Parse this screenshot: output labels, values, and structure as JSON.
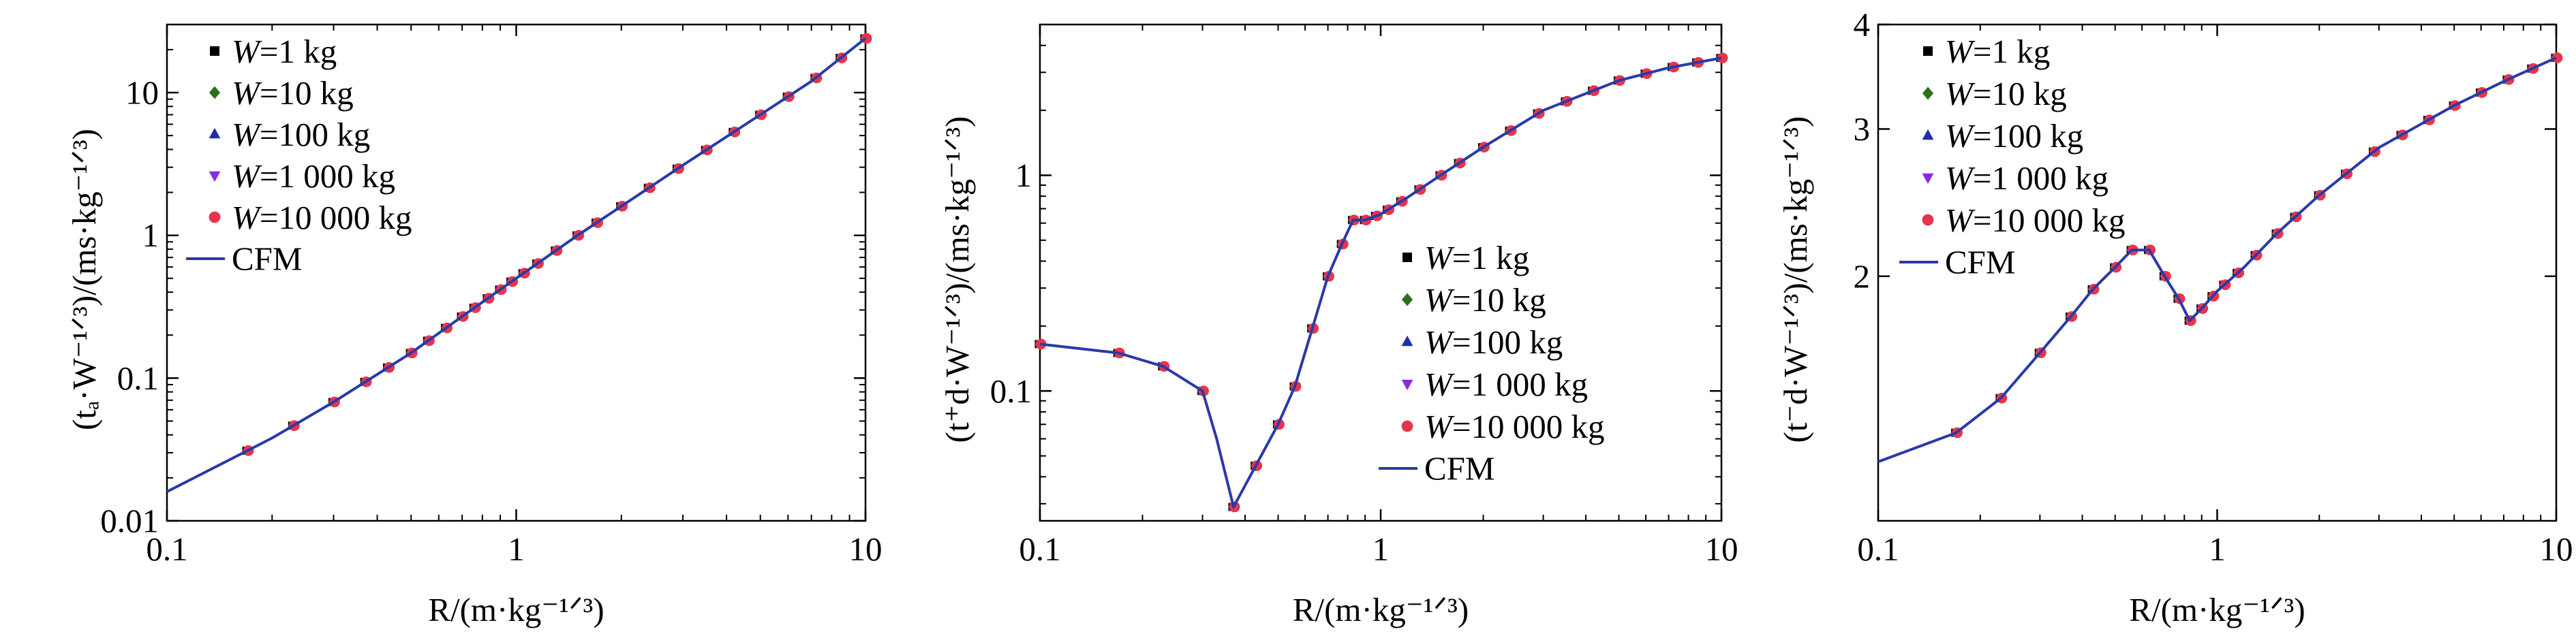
{
  "colors": {
    "W1": "#000000",
    "W10": "#2d6e1c",
    "W100": "#1d2fb0",
    "W1000": "#8a2be2",
    "W10000": "#e8344a",
    "CFM": "#2a3aa8"
  },
  "chart_data": [
    {
      "type": "line",
      "xlabel": "R/(m·kg⁻¹ᐟ³)",
      "ylabel": "(tₐ·W⁻¹ᐟ³)/(ms·kg⁻¹ᐟ³)",
      "xscale": "log",
      "yscale": "log",
      "xlim": [
        0.1,
        10
      ],
      "ylim": [
        0.01,
        30
      ],
      "xticks": [
        {
          "v": 0.1,
          "label": "0.1"
        },
        {
          "v": 1,
          "label": "1"
        },
        {
          "v": 10,
          "label": "10"
        }
      ],
      "yticks": [
        {
          "v": 0.01,
          "label": "0.01"
        },
        {
          "v": 0.1,
          "label": "0.1"
        },
        {
          "v": 1,
          "label": "1"
        },
        {
          "v": 10,
          "label": "10"
        }
      ],
      "legend_position": "top-left",
      "legend": [
        {
          "label": "W=1  kg",
          "marker": "square",
          "color_key": "W1"
        },
        {
          "label": "W=10 kg",
          "marker": "diamond",
          "color_key": "W10"
        },
        {
          "label": "W=100 kg",
          "marker": "triangle-up",
          "color_key": "W100"
        },
        {
          "label": "W=1 000 kg",
          "marker": "triangle-down",
          "color_key": "W1000"
        },
        {
          "label": "W=10 000 kg",
          "marker": "circle",
          "color_key": "W10000"
        },
        {
          "label": "CFM",
          "marker": "line",
          "color_key": "CFM"
        }
      ],
      "curve": {
        "x": [
          0.1,
          0.2,
          0.3,
          0.5,
          0.7,
          1,
          1.5,
          2,
          3,
          5,
          7,
          10
        ],
        "y": [
          0.016,
          0.038,
          0.068,
          0.15,
          0.27,
          0.5,
          1.0,
          1.6,
          3.1,
          7.0,
          12.0,
          24.0
        ]
      },
      "markers": {
        "x": [
          0.17,
          0.23,
          0.3,
          0.37,
          0.43,
          0.5,
          0.56,
          0.63,
          0.7,
          0.76,
          0.83,
          0.9,
          0.97,
          1.05,
          1.15,
          1.3,
          1.5,
          1.7,
          2.0,
          2.4,
          2.9,
          3.5,
          4.2,
          5.0,
          6.0,
          7.2,
          8.5,
          10.0
        ]
      }
    },
    {
      "type": "line",
      "xlabel": "R/(m·kg⁻¹ᐟ³)",
      "ylabel": "(t⁺d·W⁻¹ᐟ³)/(ms·kg⁻¹ᐟ³)",
      "xscale": "log",
      "yscale": "log",
      "xlim": [
        0.1,
        10
      ],
      "ylim": [
        0.025,
        5
      ],
      "xticks": [
        {
          "v": 0.1,
          "label": "0.1"
        },
        {
          "v": 1,
          "label": "1"
        },
        {
          "v": 10,
          "label": "10"
        }
      ],
      "yticks": [
        {
          "v": 0.1,
          "label": "0.1"
        },
        {
          "v": 1,
          "label": "1"
        }
      ],
      "legend_position": "lower-right",
      "legend": [
        {
          "label": "W=1  kg",
          "marker": "square",
          "color_key": "W1"
        },
        {
          "label": "W=10 kg",
          "marker": "diamond",
          "color_key": "W10"
        },
        {
          "label": "W=100 kg",
          "marker": "triangle-up",
          "color_key": "W100"
        },
        {
          "label": "W=1 000 kg",
          "marker": "triangle-down",
          "color_key": "W1000"
        },
        {
          "label": "W=10 000 kg",
          "marker": "circle",
          "color_key": "W10000"
        },
        {
          "label": "CFM",
          "marker": "line",
          "color_key": "CFM"
        }
      ],
      "curve": {
        "x": [
          0.1,
          0.17,
          0.23,
          0.3,
          0.33,
          0.37,
          0.43,
          0.5,
          0.56,
          0.63,
          0.7,
          0.77,
          0.83,
          0.9,
          1.0,
          1.2,
          1.5,
          2.0,
          3.0,
          5.0,
          7.0,
          10.0
        ],
        "y": [
          0.165,
          0.15,
          0.13,
          0.1,
          0.06,
          0.029,
          0.045,
          0.07,
          0.105,
          0.195,
          0.34,
          0.48,
          0.62,
          0.62,
          0.66,
          0.79,
          1.0,
          1.35,
          2.0,
          2.75,
          3.15,
          3.5
        ]
      },
      "markers": {
        "x": [
          0.1,
          0.17,
          0.23,
          0.3,
          0.37,
          0.43,
          0.5,
          0.56,
          0.63,
          0.7,
          0.77,
          0.83,
          0.9,
          0.97,
          1.05,
          1.15,
          1.3,
          1.5,
          1.7,
          2.0,
          2.4,
          2.9,
          3.5,
          4.2,
          5.0,
          6.0,
          7.2,
          8.5,
          10.0
        ]
      }
    },
    {
      "type": "line",
      "xlabel": "R/(m·kg⁻¹ᐟ³)",
      "ylabel": "(t⁻d·W⁻¹ᐟ³)/(ms·kg⁻¹ᐟ³)",
      "xscale": "log",
      "yscale": "log",
      "xlim": [
        0.1,
        10
      ],
      "ylim": [
        1.02,
        4.0
      ],
      "xticks": [
        {
          "v": 0.1,
          "label": "0.1"
        },
        {
          "v": 1,
          "label": "1"
        },
        {
          "v": 10,
          "label": "10"
        }
      ],
      "yticks": [
        {
          "v": 2,
          "label": "2"
        },
        {
          "v": 3,
          "label": "3"
        },
        {
          "v": 4,
          "label": "4"
        }
      ],
      "legend_position": "top-left",
      "legend": [
        {
          "label": "W=1  kg",
          "marker": "square",
          "color_key": "W1"
        },
        {
          "label": "W=10 kg",
          "marker": "diamond",
          "color_key": "W10"
        },
        {
          "label": "W=100 kg",
          "marker": "triangle-up",
          "color_key": "W100"
        },
        {
          "label": "W=1 000 kg",
          "marker": "triangle-down",
          "color_key": "W1000"
        },
        {
          "label": "W=10 000 kg",
          "marker": "circle",
          "color_key": "W10000"
        },
        {
          "label": "CFM",
          "marker": "line",
          "color_key": "CFM"
        }
      ],
      "curve": {
        "x": [
          0.1,
          0.17,
          0.23,
          0.3,
          0.37,
          0.43,
          0.5,
          0.56,
          0.63,
          0.7,
          0.77,
          0.83,
          0.9,
          1.0,
          1.2,
          1.5,
          2.0,
          3.0,
          5.0,
          7.0,
          10.0
        ],
        "y": [
          1.2,
          1.3,
          1.43,
          1.62,
          1.79,
          1.93,
          2.05,
          2.15,
          2.15,
          2.0,
          1.88,
          1.77,
          1.83,
          1.92,
          2.05,
          2.25,
          2.5,
          2.85,
          3.2,
          3.42,
          3.65
        ]
      },
      "markers": {
        "x": [
          0.17,
          0.23,
          0.3,
          0.37,
          0.43,
          0.5,
          0.56,
          0.63,
          0.7,
          0.77,
          0.83,
          0.9,
          0.97,
          1.05,
          1.15,
          1.3,
          1.5,
          1.7,
          2.0,
          2.4,
          2.9,
          3.5,
          4.2,
          5.0,
          6.0,
          7.2,
          8.5,
          10.0
        ]
      }
    }
  ]
}
